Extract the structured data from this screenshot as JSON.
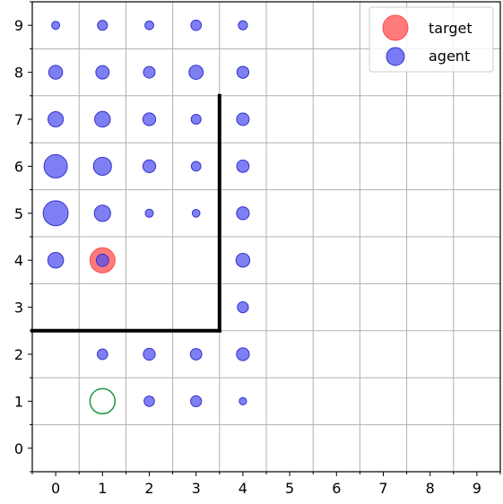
{
  "chart_data": {
    "type": "scatter",
    "xlim": [
      -0.5,
      9.5
    ],
    "ylim": [
      -0.5,
      9.5
    ],
    "xticks": [
      "0",
      "1",
      "2",
      "3",
      "4",
      "5",
      "6",
      "7",
      "8",
      "9"
    ],
    "yticks": [
      "0",
      "1",
      "2",
      "3",
      "4",
      "5",
      "6",
      "7",
      "8",
      "9"
    ],
    "grid": true,
    "legend": {
      "placement": "top-right",
      "entries": [
        {
          "label": "target",
          "color": "#ff4d4d"
        },
        {
          "label": "agent",
          "color": "#4d4df0"
        }
      ]
    },
    "colors": {
      "agent": "#4d4df0",
      "target": "#ff4d4d",
      "start": "#1a9641",
      "wall": "#000000",
      "grid": "#b0b0b0"
    },
    "agent_points": [
      {
        "x": 0,
        "y": 9,
        "w": 0.12
      },
      {
        "x": 1,
        "y": 9,
        "w": 0.18
      },
      {
        "x": 2,
        "y": 9,
        "w": 0.14
      },
      {
        "x": 3,
        "y": 9,
        "w": 0.2
      },
      {
        "x": 4,
        "y": 9,
        "w": 0.15
      },
      {
        "x": 0,
        "y": 8,
        "w": 0.35
      },
      {
        "x": 1,
        "y": 8,
        "w": 0.33
      },
      {
        "x": 2,
        "y": 8,
        "w": 0.25
      },
      {
        "x": 3,
        "y": 8,
        "w": 0.37
      },
      {
        "x": 4,
        "y": 8,
        "w": 0.26
      },
      {
        "x": 0,
        "y": 7,
        "w": 0.43
      },
      {
        "x": 1,
        "y": 7,
        "w": 0.45
      },
      {
        "x": 2,
        "y": 7,
        "w": 0.3
      },
      {
        "x": 3,
        "y": 7,
        "w": 0.18
      },
      {
        "x": 4,
        "y": 7,
        "w": 0.29
      },
      {
        "x": 0,
        "y": 6,
        "w": 1.0
      },
      {
        "x": 1,
        "y": 6,
        "w": 0.6
      },
      {
        "x": 2,
        "y": 6,
        "w": 0.3
      },
      {
        "x": 3,
        "y": 6,
        "w": 0.17
      },
      {
        "x": 4,
        "y": 6,
        "w": 0.28
      },
      {
        "x": 0,
        "y": 5,
        "w": 1.15
      },
      {
        "x": 1,
        "y": 5,
        "w": 0.49
      },
      {
        "x": 2,
        "y": 5,
        "w": 0.12
      },
      {
        "x": 3,
        "y": 5,
        "w": 0.11
      },
      {
        "x": 4,
        "y": 5,
        "w": 0.3
      },
      {
        "x": 0,
        "y": 4,
        "w": 0.45
      },
      {
        "x": 1,
        "y": 4,
        "w": 0.28
      },
      {
        "x": 4,
        "y": 4,
        "w": 0.35
      },
      {
        "x": 4,
        "y": 3,
        "w": 0.22
      },
      {
        "x": 1,
        "y": 2,
        "w": 0.2
      },
      {
        "x": 2,
        "y": 2,
        "w": 0.26
      },
      {
        "x": 3,
        "y": 2,
        "w": 0.24
      },
      {
        "x": 4,
        "y": 2,
        "w": 0.3
      },
      {
        "x": 2,
        "y": 1,
        "w": 0.2
      },
      {
        "x": 3,
        "y": 1,
        "w": 0.22
      },
      {
        "x": 4,
        "y": 1,
        "w": 0.1
      }
    ],
    "target": {
      "x": 1,
      "y": 4
    },
    "start": {
      "x": 1,
      "y": 1
    },
    "walls": [
      {
        "x1": -0.5,
        "y1": 2.5,
        "x2": 3.5,
        "y2": 2.5
      },
      {
        "x1": 3.5,
        "y1": 2.5,
        "x2": 3.5,
        "y2": 7.5
      }
    ]
  }
}
